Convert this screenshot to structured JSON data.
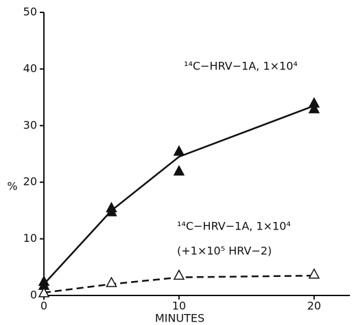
{
  "chart_data": {
    "type": "line",
    "x_label": "MINUTES",
    "y_label": "%",
    "xlim": [
      0,
      22.5
    ],
    "ylim": [
      0,
      50
    ],
    "xticks": [
      0,
      10,
      20
    ],
    "yticks": [
      0,
      10,
      20,
      30,
      40,
      50
    ],
    "series": [
      {
        "label": [
          "¹⁴C−HRV−1A, 1×10⁴"
        ],
        "marker": "filled-triangle",
        "line": "solid",
        "color": "#111111",
        "x": [
          0,
          5,
          10,
          20
        ],
        "values": [
          2,
          15,
          24.5,
          33.5
        ],
        "points": {
          "x": [
            0,
            0,
            5,
            5,
            10,
            10,
            20,
            20
          ],
          "y": [
            2.5,
            1.8,
            15.5,
            14.8,
            25.5,
            22,
            34,
            33
          ]
        }
      },
      {
        "label": [
          "¹⁴C−HRV−1A, 1×10⁴",
          "(+1×10⁵ HRV−2)"
        ],
        "marker": "open-triangle",
        "line": "dashed",
        "color": "#111111",
        "x": [
          0,
          5,
          10,
          20
        ],
        "values": [
          0.5,
          2,
          3.2,
          3.5
        ],
        "points": {
          "x": [
            0,
            5,
            10,
            20
          ],
          "y": [
            0.5,
            2.3,
            3.6,
            3.8
          ]
        }
      }
    ]
  }
}
